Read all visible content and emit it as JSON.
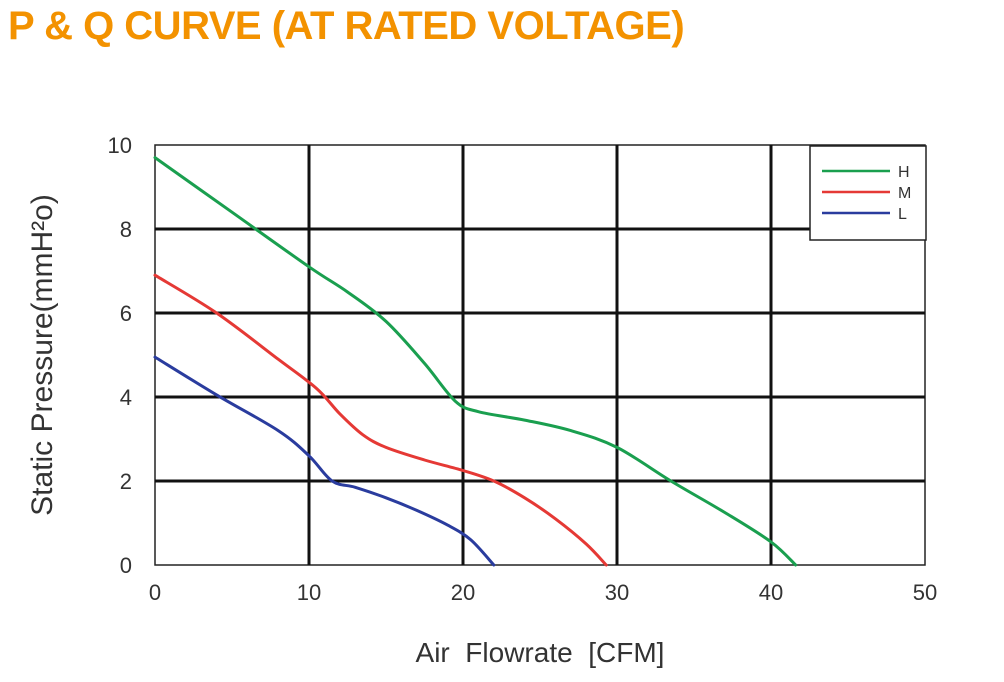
{
  "colors": {
    "title": "#f39200",
    "grid": "#111111",
    "frame": "#222222",
    "text": "#333333"
  },
  "chart_data": {
    "type": "line",
    "title": "P & Q CURVE (AT RATED VOLTAGE)",
    "xlabel": "Air  Flowrate  [CFM]",
    "ylabel": "Static Pressure(mmH²o)",
    "xlim": [
      0,
      50
    ],
    "ylim": [
      0,
      10
    ],
    "xticks": [
      "0",
      "10",
      "20",
      "30",
      "40",
      "50"
    ],
    "yticks": [
      "0",
      "2",
      "4",
      "6",
      "8",
      "10"
    ],
    "grid": true,
    "legend_position": "top-right",
    "series": [
      {
        "name": "H",
        "color": "#1a9f4f",
        "points": [
          [
            0,
            9.7
          ],
          [
            5,
            8.4
          ],
          [
            10,
            7.1
          ],
          [
            12.5,
            6.5
          ],
          [
            15,
            5.8
          ],
          [
            17.5,
            4.8
          ],
          [
            19.5,
            3.9
          ],
          [
            21,
            3.65
          ],
          [
            24,
            3.45
          ],
          [
            27,
            3.2
          ],
          [
            30,
            2.8
          ],
          [
            33.5,
            2.0
          ],
          [
            37,
            1.25
          ],
          [
            40,
            0.55
          ],
          [
            41.6,
            0.0
          ]
        ]
      },
      {
        "name": "M",
        "color": "#e53935",
        "points": [
          [
            0,
            6.9
          ],
          [
            4,
            6.0
          ],
          [
            8,
            4.9
          ],
          [
            10.5,
            4.2
          ],
          [
            12,
            3.6
          ],
          [
            13.5,
            3.1
          ],
          [
            15,
            2.8
          ],
          [
            17.5,
            2.5
          ],
          [
            20,
            2.25
          ],
          [
            22,
            2.0
          ],
          [
            24,
            1.6
          ],
          [
            26,
            1.1
          ],
          [
            28,
            0.5
          ],
          [
            29.3,
            0.0
          ]
        ]
      },
      {
        "name": "L",
        "color": "#2a3c9e",
        "points": [
          [
            0,
            4.95
          ],
          [
            4,
            4.05
          ],
          [
            8,
            3.2
          ],
          [
            10,
            2.6
          ],
          [
            11.5,
            2.0
          ],
          [
            13,
            1.85
          ],
          [
            15,
            1.6
          ],
          [
            17,
            1.3
          ],
          [
            19,
            0.95
          ],
          [
            20.5,
            0.6
          ],
          [
            22,
            0.0
          ]
        ]
      }
    ]
  }
}
